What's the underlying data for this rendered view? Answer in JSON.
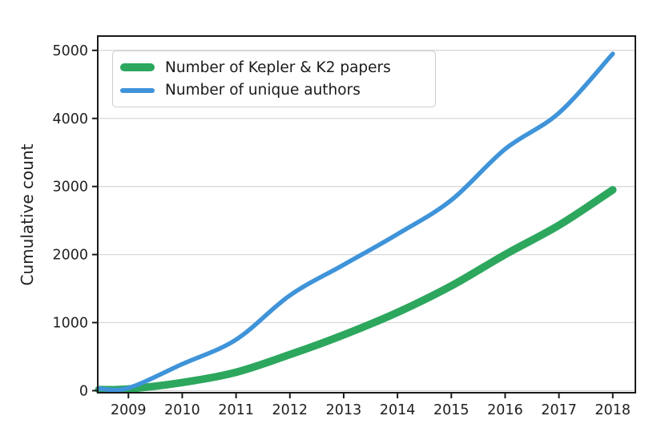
{
  "figure": {
    "background": "#ffffff",
    "spine_color": "#1a1a1a",
    "grid_color": "#d9d9d9",
    "tick_color": "#1a1a1a",
    "text_color": "#1f1f1f",
    "legend_border_color": "#cccccc"
  },
  "chart_data": {
    "type": "line",
    "title": "",
    "xlabel": "",
    "ylabel": "Cumulative count",
    "x": [
      2008.45,
      2009,
      2010,
      2011,
      2012,
      2013,
      2014,
      2015,
      2016,
      2017,
      2018
    ],
    "series": [
      {
        "name": "Number of Kepler & K2 papers",
        "color": "#2ca75d",
        "line_width": 9.5,
        "values": [
          15,
          25,
          120,
          270,
          530,
          820,
          1150,
          1540,
          2000,
          2430,
          2950
        ]
      },
      {
        "name": "Number of unique authors",
        "color": "#3f94d9",
        "line_width": 5.5,
        "values": [
          30,
          40,
          390,
          750,
          1400,
          1850,
          2300,
          2800,
          3550,
          4080,
          4950
        ]
      }
    ],
    "xticks": [
      2009,
      2010,
      2011,
      2012,
      2013,
      2014,
      2015,
      2016,
      2017,
      2018
    ],
    "yticks": [
      0,
      1000,
      2000,
      3000,
      4000,
      5000
    ],
    "xlim": [
      2008.43,
      2018.42
    ],
    "ylim": [
      -30,
      5210
    ],
    "grid": "horizontal",
    "legend_position": "upper-left"
  }
}
